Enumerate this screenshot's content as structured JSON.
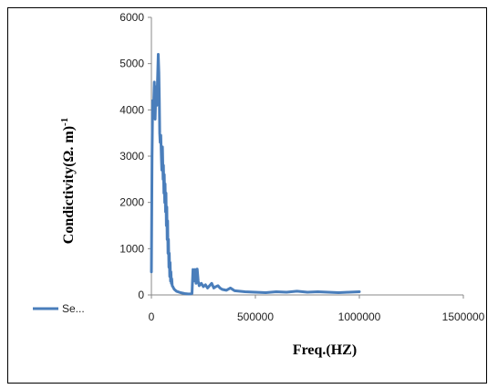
{
  "chart_data": {
    "type": "line",
    "xlabel": "Freq.(HZ)",
    "ylabel_main": "Condictivity(Ω. m)",
    "ylabel_sup": "-1",
    "xlim": [
      0,
      1500000
    ],
    "ylim": [
      0,
      6000
    ],
    "xticks": [
      "0",
      "500000",
      "1000000",
      "1500000"
    ],
    "yticks": [
      "0",
      "1000",
      "2000",
      "3000",
      "4000",
      "5000",
      "6000"
    ],
    "grid": false,
    "legend_position": "left",
    "series": [
      {
        "name": "Se...",
        "color": "#4a7ebb",
        "x": [
          0,
          3000,
          6000,
          10000,
          14000,
          18000,
          22000,
          26000,
          30000,
          33000,
          36000,
          38000,
          40000,
          42000,
          45000,
          48000,
          50000,
          53000,
          56000,
          58000,
          60000,
          62000,
          64000,
          66000,
          68000,
          70000,
          72000,
          74000,
          76000,
          78000,
          80000,
          82000,
          84000,
          86000,
          88000,
          90000,
          92000,
          94000,
          96000,
          98000,
          100000,
          103000,
          106000,
          110000,
          120000,
          140000,
          160000,
          180000,
          195000,
          200000,
          205000,
          210000,
          215000,
          220000,
          225000,
          230000,
          240000,
          250000,
          260000,
          270000,
          280000,
          290000,
          300000,
          310000,
          320000,
          330000,
          340000,
          360000,
          380000,
          400000,
          450000,
          500000,
          550000,
          600000,
          650000,
          700000,
          750000,
          800000,
          850000,
          900000,
          950000,
          1000000
        ],
        "y": [
          500,
          3000,
          4200,
          4000,
          4600,
          3800,
          4500,
          4100,
          4700,
          5200,
          4800,
          4200,
          3500,
          3300,
          3450,
          3000,
          2700,
          3200,
          2500,
          2800,
          2200,
          2600,
          2000,
          2400,
          1800,
          2200,
          1500,
          1900,
          1200,
          1600,
          900,
          1200,
          600,
          900,
          400,
          700,
          300,
          500,
          250,
          350,
          200,
          180,
          150,
          120,
          80,
          50,
          30,
          20,
          30,
          550,
          300,
          550,
          250,
          560,
          300,
          200,
          250,
          180,
          220,
          150,
          200,
          250,
          150,
          180,
          200,
          150,
          120,
          100,
          150,
          90,
          70,
          60,
          50,
          70,
          60,
          80,
          60,
          70,
          60,
          50,
          60,
          70
        ]
      }
    ]
  }
}
